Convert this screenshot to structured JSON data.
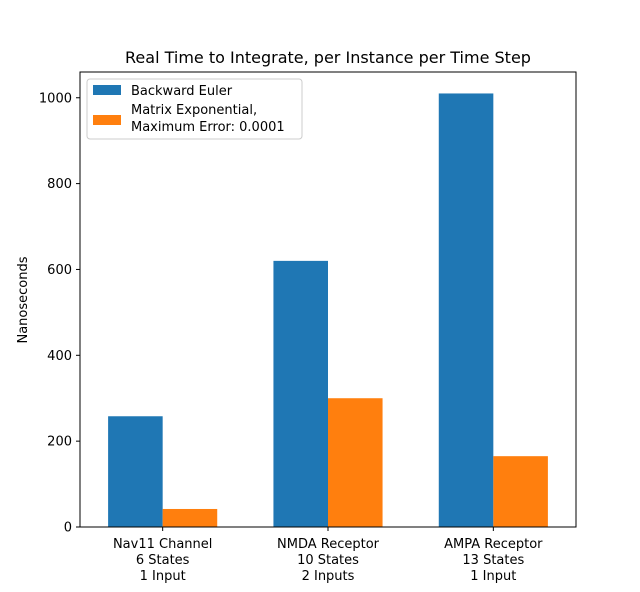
{
  "chart_data": {
    "type": "bar",
    "title": "Real Time to Integrate, per Instance per Time Step",
    "xlabel": "",
    "ylabel": "Nanoseconds",
    "ylim": [
      0,
      1060
    ],
    "yticks": [
      0,
      200,
      400,
      600,
      800,
      1000
    ],
    "categories": [
      [
        "Nav11 Channel",
        "6 States",
        "1 Input"
      ],
      [
        "NMDA Receptor",
        "10 States",
        "2 Inputs"
      ],
      [
        "AMPA Receptor",
        "13 States",
        "1 Input"
      ]
    ],
    "series": [
      {
        "name": [
          "Backward Euler"
        ],
        "color": "#1f77b4",
        "values": [
          258,
          620,
          1010
        ]
      },
      {
        "name": [
          "Matrix Exponential,",
          "Maximum Error: 0.0001"
        ],
        "color": "#ff7f0e",
        "values": [
          42,
          300,
          165
        ]
      }
    ],
    "grid": false,
    "legend_position": "top-left"
  }
}
